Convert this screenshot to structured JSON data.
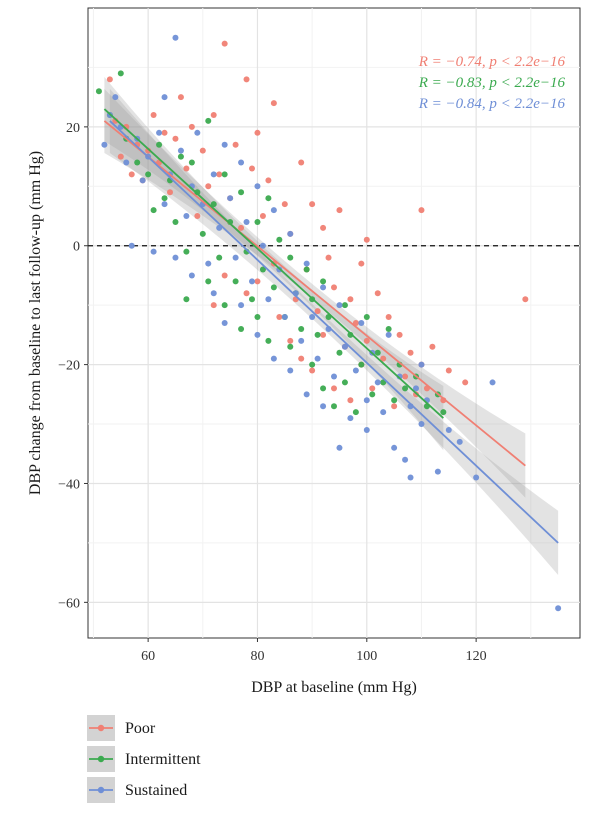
{
  "chart_data": {
    "type": "scatter",
    "xlabel": "DBP at baseline (mm Hg)",
    "ylabel": "DBP change from baseline to last follow-up (mm Hg)",
    "xlim": [
      49,
      139
    ],
    "ylim": [
      -66,
      40
    ],
    "xticks": [
      60,
      80,
      100,
      120
    ],
    "yticks": [
      -60,
      -40,
      -20,
      0,
      20
    ],
    "reference_line_y": 0,
    "grid": true,
    "legend_position": "bottom-left",
    "series": [
      {
        "name": "Poor",
        "color": "#F07F73",
        "stat_label": "R = −0.74, p < 2.2e−16",
        "fit": {
          "x": [
            52,
            129
          ],
          "y": [
            21,
            -37
          ]
        },
        "points": [
          [
            53,
            28
          ],
          [
            54,
            21
          ],
          [
            55,
            15
          ],
          [
            56,
            20
          ],
          [
            57,
            12
          ],
          [
            58,
            17
          ],
          [
            59,
            11
          ],
          [
            60,
            16
          ],
          [
            61,
            22
          ],
          [
            62,
            14
          ],
          [
            63,
            19
          ],
          [
            64,
            9
          ],
          [
            65,
            18
          ],
          [
            66,
            25
          ],
          [
            67,
            13
          ],
          [
            68,
            20
          ],
          [
            69,
            5
          ],
          [
            70,
            16
          ],
          [
            71,
            10
          ],
          [
            72,
            22
          ],
          [
            72,
            -10
          ],
          [
            73,
            12
          ],
          [
            74,
            34
          ],
          [
            74,
            -5
          ],
          [
            75,
            8
          ],
          [
            76,
            17
          ],
          [
            77,
            3
          ],
          [
            78,
            28
          ],
          [
            78,
            -8
          ],
          [
            79,
            13
          ],
          [
            80,
            19
          ],
          [
            80,
            -6
          ],
          [
            81,
            5
          ],
          [
            82,
            11
          ],
          [
            83,
            24
          ],
          [
            83,
            -3
          ],
          [
            84,
            -12
          ],
          [
            85,
            7
          ],
          [
            86,
            -16
          ],
          [
            86,
            2
          ],
          [
            87,
            -9
          ],
          [
            88,
            -19
          ],
          [
            88,
            14
          ],
          [
            89,
            -4
          ],
          [
            90,
            7
          ],
          [
            90,
            -21
          ],
          [
            91,
            -11
          ],
          [
            92,
            3
          ],
          [
            92,
            -15
          ],
          [
            93,
            -2
          ],
          [
            94,
            -24
          ],
          [
            94,
            -7
          ],
          [
            95,
            6
          ],
          [
            96,
            -17
          ],
          [
            97,
            -9
          ],
          [
            97,
            -26
          ],
          [
            98,
            -13
          ],
          [
            99,
            -3
          ],
          [
            99,
            -20
          ],
          [
            100,
            1
          ],
          [
            100,
            -16
          ],
          [
            101,
            -24
          ],
          [
            102,
            -8
          ],
          [
            103,
            -19
          ],
          [
            104,
            -12
          ],
          [
            105,
            -27
          ],
          [
            106,
            -15
          ],
          [
            107,
            -22
          ],
          [
            108,
            -18
          ],
          [
            109,
            -25
          ],
          [
            110,
            6
          ],
          [
            110,
            -20
          ],
          [
            111,
            -24
          ],
          [
            112,
            -17
          ],
          [
            114,
            -26
          ],
          [
            115,
            -21
          ],
          [
            118,
            -23
          ],
          [
            129,
            -9
          ]
        ]
      },
      {
        "name": "Intermittent",
        "color": "#3BAA4F",
        "stat_label": "R = −0.83, p < 2.2e−16",
        "fit": {
          "x": [
            52,
            114
          ],
          "y": [
            23,
            -29
          ]
        },
        "points": [
          [
            51,
            26
          ],
          [
            53,
            22
          ],
          [
            55,
            29
          ],
          [
            56,
            18
          ],
          [
            58,
            14
          ],
          [
            60,
            12
          ],
          [
            61,
            6
          ],
          [
            62,
            17
          ],
          [
            63,
            8
          ],
          [
            64,
            11
          ],
          [
            65,
            4
          ],
          [
            66,
            15
          ],
          [
            67,
            -1
          ],
          [
            67,
            -9
          ],
          [
            68,
            14
          ],
          [
            69,
            9
          ],
          [
            70,
            2
          ],
          [
            71,
            21
          ],
          [
            71,
            -6
          ],
          [
            72,
            7
          ],
          [
            73,
            -2
          ],
          [
            74,
            12
          ],
          [
            74,
            -10
          ],
          [
            75,
            4
          ],
          [
            76,
            -6
          ],
          [
            77,
            9
          ],
          [
            77,
            -14
          ],
          [
            78,
            -1
          ],
          [
            79,
            -9
          ],
          [
            80,
            4
          ],
          [
            80,
            -12
          ],
          [
            81,
            -4
          ],
          [
            82,
            8
          ],
          [
            82,
            -16
          ],
          [
            83,
            -7
          ],
          [
            84,
            1
          ],
          [
            85,
            -12
          ],
          [
            86,
            -2
          ],
          [
            86,
            -17
          ],
          [
            87,
            -8
          ],
          [
            88,
            -14
          ],
          [
            89,
            -4
          ],
          [
            90,
            -20
          ],
          [
            90,
            -9
          ],
          [
            91,
            -15
          ],
          [
            92,
            -24
          ],
          [
            92,
            -6
          ],
          [
            93,
            -12
          ],
          [
            94,
            -27
          ],
          [
            95,
            -18
          ],
          [
            96,
            -10
          ],
          [
            96,
            -23
          ],
          [
            97,
            -15
          ],
          [
            98,
            -28
          ],
          [
            99,
            -20
          ],
          [
            100,
            -12
          ],
          [
            101,
            -25
          ],
          [
            102,
            -18
          ],
          [
            103,
            -23
          ],
          [
            104,
            -14
          ],
          [
            105,
            -26
          ],
          [
            106,
            -20
          ],
          [
            107,
            -24
          ],
          [
            109,
            -22
          ],
          [
            111,
            -27
          ],
          [
            113,
            -25
          ],
          [
            114,
            -28
          ]
        ]
      },
      {
        "name": "Sustained",
        "color": "#6F8FD6",
        "stat_label": "R = −0.84, p < 2.2e−16",
        "fit": {
          "x": [
            53,
            135
          ],
          "y": [
            21,
            -50
          ]
        },
        "points": [
          [
            52,
            17
          ],
          [
            53,
            22
          ],
          [
            54,
            25
          ],
          [
            55,
            20
          ],
          [
            56,
            14
          ],
          [
            57,
            0
          ],
          [
            58,
            18
          ],
          [
            59,
            11
          ],
          [
            60,
            15
          ],
          [
            61,
            -1
          ],
          [
            62,
            19
          ],
          [
            63,
            25
          ],
          [
            63,
            7
          ],
          [
            64,
            12
          ],
          [
            65,
            35
          ],
          [
            65,
            -2
          ],
          [
            66,
            16
          ],
          [
            67,
            5
          ],
          [
            68,
            10
          ],
          [
            68,
            -5
          ],
          [
            69,
            19
          ],
          [
            70,
            7
          ],
          [
            71,
            -3
          ],
          [
            72,
            12
          ],
          [
            72,
            -8
          ],
          [
            73,
            3
          ],
          [
            74,
            -13
          ],
          [
            74,
            17
          ],
          [
            75,
            8
          ],
          [
            76,
            -2
          ],
          [
            77,
            14
          ],
          [
            77,
            -10
          ],
          [
            78,
            4
          ],
          [
            79,
            -6
          ],
          [
            80,
            10
          ],
          [
            80,
            -15
          ],
          [
            81,
            0
          ],
          [
            82,
            -9
          ],
          [
            83,
            6
          ],
          [
            83,
            -19
          ],
          [
            84,
            -4
          ],
          [
            85,
            -12
          ],
          [
            86,
            2
          ],
          [
            86,
            -21
          ],
          [
            87,
            -8
          ],
          [
            88,
            -16
          ],
          [
            89,
            -3
          ],
          [
            89,
            -25
          ],
          [
            90,
            -12
          ],
          [
            91,
            -19
          ],
          [
            92,
            -7
          ],
          [
            92,
            -27
          ],
          [
            93,
            -14
          ],
          [
            94,
            -22
          ],
          [
            95,
            -34
          ],
          [
            95,
            -10
          ],
          [
            96,
            -17
          ],
          [
            97,
            -29
          ],
          [
            98,
            -21
          ],
          [
            99,
            -13
          ],
          [
            100,
            -26
          ],
          [
            100,
            -31
          ],
          [
            101,
            -18
          ],
          [
            102,
            -23
          ],
          [
            103,
            -28
          ],
          [
            104,
            -15
          ],
          [
            105,
            -34
          ],
          [
            106,
            -22
          ],
          [
            107,
            -36
          ],
          [
            108,
            -27
          ],
          [
            108,
            -39
          ],
          [
            109,
            -24
          ],
          [
            110,
            -20
          ],
          [
            110,
            -30
          ],
          [
            111,
            -26
          ],
          [
            113,
            -38
          ],
          [
            115,
            -31
          ],
          [
            117,
            -33
          ],
          [
            120,
            -39
          ],
          [
            123,
            -23
          ],
          [
            135,
            -61
          ]
        ]
      }
    ]
  }
}
